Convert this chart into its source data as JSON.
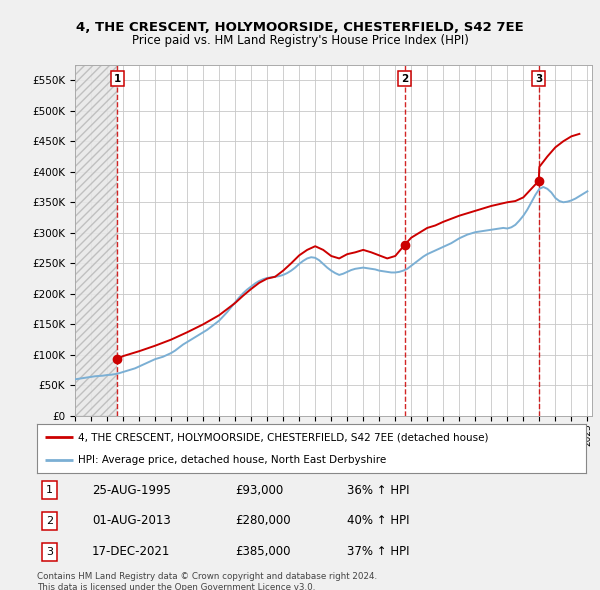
{
  "title": "4, THE CRESCENT, HOLYMOORSIDE, CHESTERFIELD, S42 7EE",
  "subtitle": "Price paid vs. HM Land Registry's House Price Index (HPI)",
  "ylim": [
    0,
    575000
  ],
  "yticks": [
    0,
    50000,
    100000,
    150000,
    200000,
    250000,
    300000,
    350000,
    400000,
    450000,
    500000,
    550000
  ],
  "ytick_labels": [
    "£0",
    "£50K",
    "£100K",
    "£150K",
    "£200K",
    "£250K",
    "£300K",
    "£350K",
    "£400K",
    "£450K",
    "£500K",
    "£550K"
  ],
  "background_color": "#f0f0f0",
  "plot_bg_color": "#ffffff",
  "grid_color": "#c8c8c8",
  "transactions": [
    {
      "num": 1,
      "date": "25-AUG-1995",
      "price": 93000,
      "year": 1995.65,
      "pct": "36%",
      "dir": "↑"
    },
    {
      "num": 2,
      "date": "01-AUG-2013",
      "price": 280000,
      "year": 2013.58,
      "pct": "40%",
      "dir": "↑"
    },
    {
      "num": 3,
      "date": "17-DEC-2021",
      "price": 385000,
      "year": 2021.96,
      "pct": "37%",
      "dir": "↑"
    }
  ],
  "legend_entries": [
    "4, THE CRESCENT, HOLYMOORSIDE, CHESTERFIELD, S42 7EE (detached house)",
    "HPI: Average price, detached house, North East Derbyshire"
  ],
  "footer_lines": [
    "Contains HM Land Registry data © Crown copyright and database right 2024.",
    "This data is licensed under the Open Government Licence v3.0."
  ],
  "hpi_color": "#7bafd4",
  "price_color": "#cc0000",
  "vline_color": "#cc0000",
  "hpi_data_x": [
    1993.0,
    1993.25,
    1993.5,
    1993.75,
    1994.0,
    1994.25,
    1994.5,
    1994.75,
    1995.0,
    1995.25,
    1995.5,
    1995.75,
    1996.0,
    1996.25,
    1996.5,
    1996.75,
    1997.0,
    1997.25,
    1997.5,
    1997.75,
    1998.0,
    1998.25,
    1998.5,
    1998.75,
    1999.0,
    1999.25,
    1999.5,
    1999.75,
    2000.0,
    2000.25,
    2000.5,
    2000.75,
    2001.0,
    2001.25,
    2001.5,
    2001.75,
    2002.0,
    2002.25,
    2002.5,
    2002.75,
    2003.0,
    2003.25,
    2003.5,
    2003.75,
    2004.0,
    2004.25,
    2004.5,
    2004.75,
    2005.0,
    2005.25,
    2005.5,
    2005.75,
    2006.0,
    2006.25,
    2006.5,
    2006.75,
    2007.0,
    2007.25,
    2007.5,
    2007.75,
    2008.0,
    2008.25,
    2008.5,
    2008.75,
    2009.0,
    2009.25,
    2009.5,
    2009.75,
    2010.0,
    2010.25,
    2010.5,
    2010.75,
    2011.0,
    2011.25,
    2011.5,
    2011.75,
    2012.0,
    2012.25,
    2012.5,
    2012.75,
    2013.0,
    2013.25,
    2013.5,
    2013.75,
    2014.0,
    2014.25,
    2014.5,
    2014.75,
    2015.0,
    2015.25,
    2015.5,
    2015.75,
    2016.0,
    2016.25,
    2016.5,
    2016.75,
    2017.0,
    2017.25,
    2017.5,
    2017.75,
    2018.0,
    2018.25,
    2018.5,
    2018.75,
    2019.0,
    2019.25,
    2019.5,
    2019.75,
    2020.0,
    2020.25,
    2020.5,
    2020.75,
    2021.0,
    2021.25,
    2021.5,
    2021.75,
    2022.0,
    2022.25,
    2022.5,
    2022.75,
    2023.0,
    2023.25,
    2023.5,
    2023.75,
    2024.0,
    2024.25,
    2024.5,
    2024.75,
    2025.0
  ],
  "hpi_data_y": [
    60000,
    61000,
    62000,
    63000,
    64000,
    65000,
    65500,
    66000,
    67000,
    67500,
    68500,
    70000,
    72000,
    74000,
    76000,
    78000,
    81000,
    84000,
    87000,
    90000,
    93000,
    95000,
    97000,
    100000,
    103000,
    107000,
    112000,
    117000,
    121000,
    125000,
    129000,
    133000,
    137000,
    141000,
    146000,
    151000,
    156000,
    163000,
    170000,
    178000,
    186000,
    194000,
    201000,
    207000,
    212000,
    217000,
    221000,
    224000,
    226000,
    227000,
    228000,
    229000,
    231000,
    234000,
    238000,
    243000,
    249000,
    254000,
    258000,
    260000,
    259000,
    255000,
    249000,
    243000,
    238000,
    234000,
    231000,
    233000,
    236000,
    239000,
    241000,
    242000,
    243000,
    242000,
    241000,
    240000,
    238000,
    237000,
    236000,
    235000,
    235000,
    236000,
    238000,
    241000,
    246000,
    251000,
    256000,
    261000,
    265000,
    268000,
    271000,
    274000,
    277000,
    280000,
    283000,
    287000,
    291000,
    294000,
    297000,
    299000,
    301000,
    302000,
    303000,
    304000,
    305000,
    306000,
    307000,
    308000,
    307000,
    309000,
    313000,
    320000,
    328000,
    338000,
    350000,
    362000,
    372000,
    375000,
    372000,
    366000,
    357000,
    352000,
    350000,
    351000,
    353000,
    356000,
    360000,
    364000,
    368000
  ],
  "price_data_x": [
    1995.65,
    1996.0,
    1997.0,
    1998.0,
    1999.0,
    2000.0,
    2001.0,
    2002.0,
    2003.0,
    2003.5,
    2004.0,
    2004.5,
    2005.0,
    2005.5,
    2006.0,
    2006.5,
    2007.0,
    2007.5,
    2008.0,
    2008.5,
    2009.0,
    2009.5,
    2010.0,
    2010.5,
    2011.0,
    2011.5,
    2012.0,
    2012.5,
    2013.0,
    2013.58,
    2014.0,
    2014.5,
    2015.0,
    2015.5,
    2016.0,
    2016.5,
    2017.0,
    2017.5,
    2018.0,
    2018.5,
    2019.0,
    2019.5,
    2020.0,
    2020.5,
    2021.0,
    2021.96,
    2022.0,
    2022.5,
    2023.0,
    2023.5,
    2024.0,
    2024.5
  ],
  "price_data_y": [
    93000,
    98000,
    106000,
    115000,
    125000,
    137000,
    150000,
    165000,
    185000,
    197000,
    208000,
    218000,
    225000,
    228000,
    238000,
    250000,
    263000,
    272000,
    278000,
    272000,
    262000,
    258000,
    265000,
    268000,
    272000,
    268000,
    263000,
    258000,
    262000,
    280000,
    292000,
    300000,
    308000,
    312000,
    318000,
    323000,
    328000,
    332000,
    336000,
    340000,
    344000,
    347000,
    350000,
    352000,
    358000,
    385000,
    408000,
    425000,
    440000,
    450000,
    458000,
    462000
  ],
  "xmin": 1993.0,
  "xmax": 2025.3,
  "hatch_end": 1995.65
}
